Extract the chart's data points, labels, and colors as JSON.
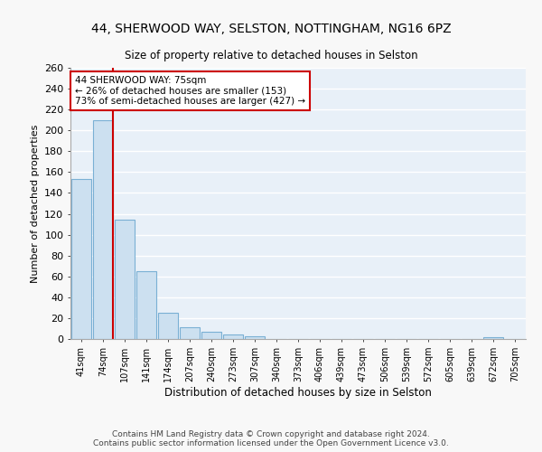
{
  "title1": "44, SHERWOOD WAY, SELSTON, NOTTINGHAM, NG16 6PZ",
  "title2": "Size of property relative to detached houses in Selston",
  "xlabel": "Distribution of detached houses by size in Selston",
  "ylabel": "Number of detached properties",
  "bar_labels": [
    "41sqm",
    "74sqm",
    "107sqm",
    "141sqm",
    "174sqm",
    "207sqm",
    "240sqm",
    "273sqm",
    "307sqm",
    "340sqm",
    "373sqm",
    "406sqm",
    "439sqm",
    "473sqm",
    "506sqm",
    "539sqm",
    "572sqm",
    "605sqm",
    "639sqm",
    "672sqm",
    "705sqm"
  ],
  "bar_values": [
    153,
    210,
    114,
    65,
    25,
    11,
    7,
    4,
    3,
    0,
    0,
    0,
    0,
    0,
    0,
    0,
    0,
    0,
    0,
    2,
    0
  ],
  "bar_color": "#cce0f0",
  "bar_edge_color": "#7ab0d4",
  "bg_color": "#e8f0f8",
  "grid_color": "#ffffff",
  "vline_color": "#cc0000",
  "annotation_text": "44 SHERWOOD WAY: 75sqm\n← 26% of detached houses are smaller (153)\n73% of semi-detached houses are larger (427) →",
  "annotation_box_color": "#ffffff",
  "annotation_box_edge": "#cc0000",
  "footer1": "Contains HM Land Registry data © Crown copyright and database right 2024.",
  "footer2": "Contains public sector information licensed under the Open Government Licence v3.0.",
  "ylim": [
    0,
    260
  ],
  "yticks": [
    0,
    20,
    40,
    60,
    80,
    100,
    120,
    140,
    160,
    180,
    200,
    220,
    240,
    260
  ]
}
